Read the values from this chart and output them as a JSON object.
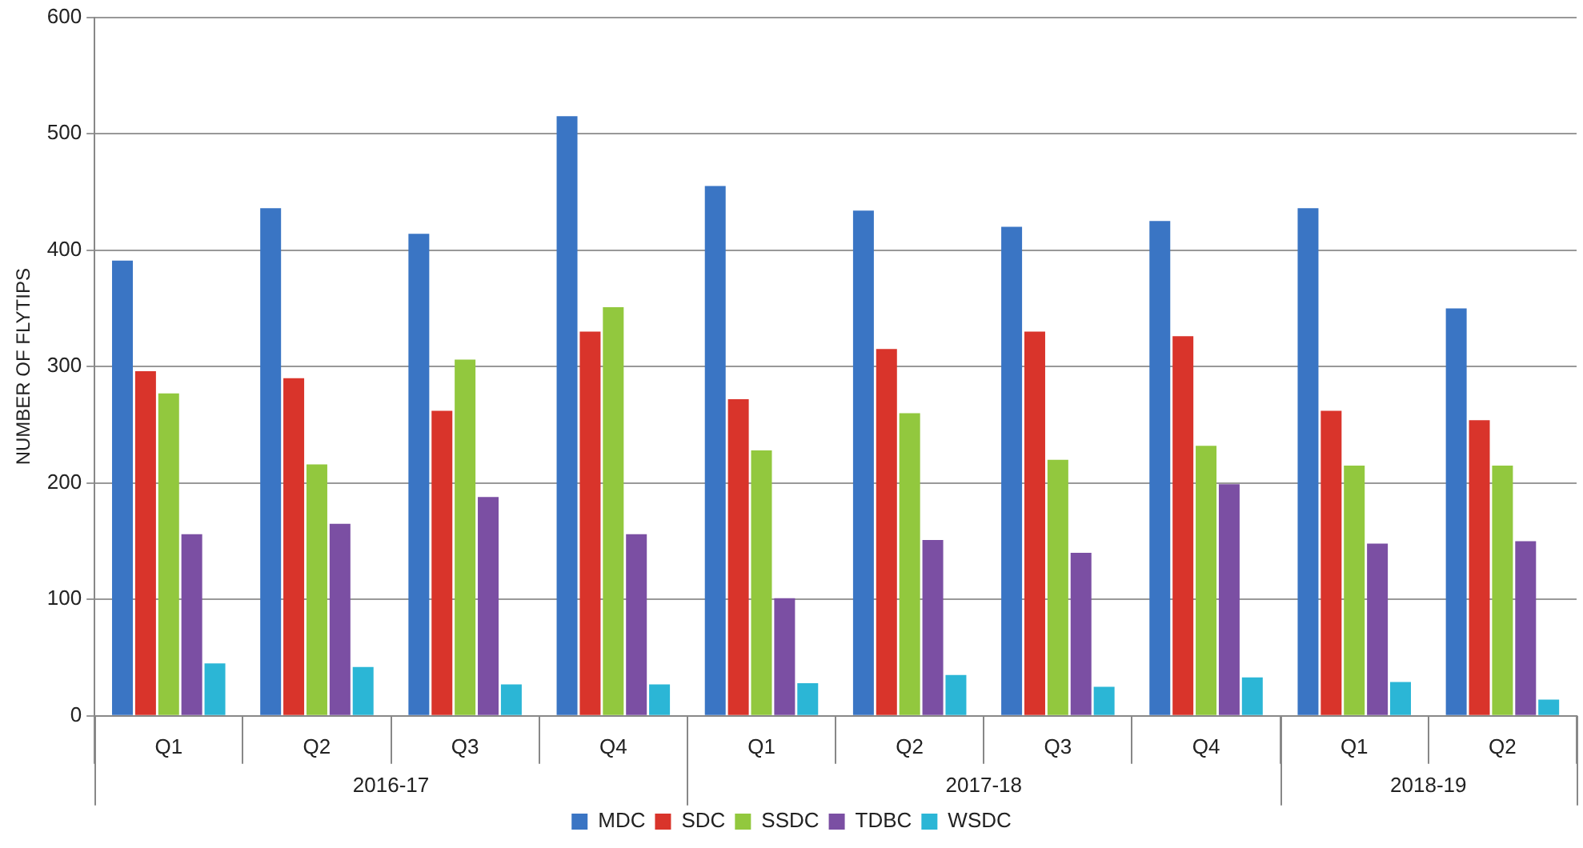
{
  "chart_data": {
    "type": "bar",
    "ylabel": "NUMBER OF FLYTIPS",
    "categories": [
      "Q1",
      "Q2",
      "Q3",
      "Q4",
      "Q1",
      "Q2",
      "Q3",
      "Q4",
      "Q1",
      "Q2"
    ],
    "annotations": [
      "2016-17",
      "2017-18",
      "2018-19"
    ],
    "series": [
      {
        "name": "MDC",
        "color": "#3a75c4",
        "values": [
          391,
          436,
          414,
          515,
          455,
          434,
          420,
          425,
          436,
          350
        ]
      },
      {
        "name": "SDC",
        "color": "#d9342b",
        "values": [
          296,
          290,
          262,
          330,
          272,
          315,
          330,
          326,
          262,
          254
        ]
      },
      {
        "name": "SSDC",
        "color": "#92c83e",
        "values": [
          277,
          216,
          306,
          351,
          228,
          260,
          220,
          232,
          215,
          215
        ]
      },
      {
        "name": "TDBC",
        "color": "#7b4fa3",
        "values": [
          156,
          165,
          188,
          156,
          101,
          151,
          140,
          199,
          148,
          150
        ]
      },
      {
        "name": "WSDC",
        "color": "#2bb6d6",
        "values": [
          45,
          42,
          27,
          27,
          28,
          35,
          25,
          33,
          29,
          14
        ]
      }
    ],
    "ylim": [
      0,
      600
    ],
    "yticks": [
      0,
      100,
      200,
      300,
      400,
      500,
      600
    ],
    "grid": "y",
    "legend": "bottom"
  }
}
